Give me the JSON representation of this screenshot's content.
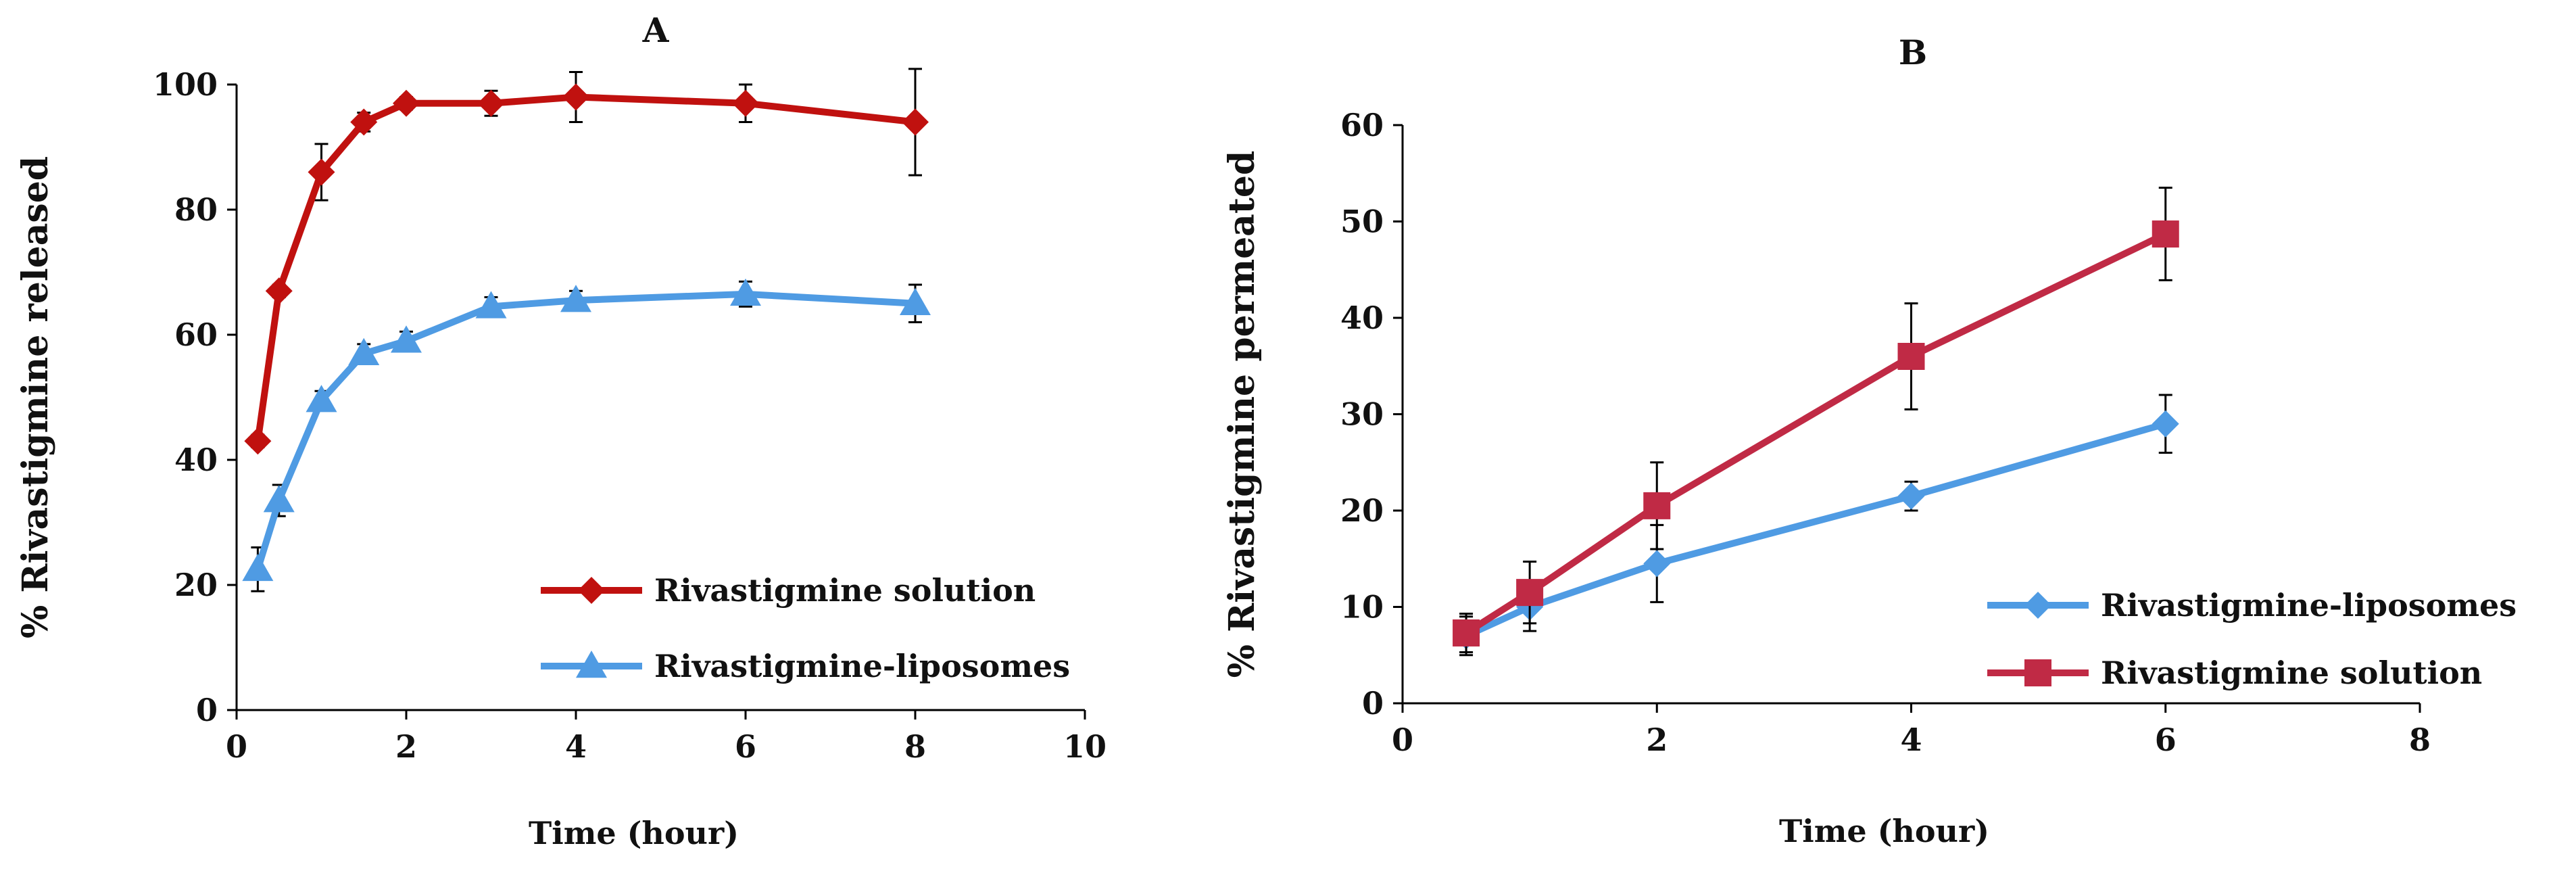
{
  "chart_data": [
    {
      "type": "line",
      "panel_label": "A",
      "title": "",
      "xlabel": "Time (hour)",
      "ylabel": "% Rivastigmine released",
      "xlim": [
        0,
        10
      ],
      "ylim": [
        0,
        100
      ],
      "xticks": [
        0,
        2,
        4,
        6,
        8,
        10
      ],
      "yticks": [
        0,
        20,
        40,
        60,
        80,
        100
      ],
      "xtick_labels": [
        "0",
        "2",
        "4",
        "6",
        "8",
        "10"
      ],
      "ytick_labels": [
        "0",
        "20",
        "40",
        "60",
        "80",
        "100"
      ],
      "grid": false,
      "legend_position": "bottom-right",
      "series": [
        {
          "name": "Rivastigmine solution",
          "color": "#c0110f",
          "marker": "diamond",
          "x": [
            0.25,
            0.5,
            1,
            1.5,
            2,
            3,
            4,
            6,
            8
          ],
          "y": [
            43,
            67,
            86,
            94,
            97,
            97,
            98,
            97,
            94
          ],
          "err": [
            1,
            1,
            4.5,
            1.5,
            1,
            2,
            4,
            3,
            8.5
          ]
        },
        {
          "name": "Rivastigmine-liposomes",
          "color": "#4f9be3",
          "marker": "triangle",
          "x": [
            0.25,
            0.5,
            1,
            1.5,
            2,
            3,
            4,
            6,
            8
          ],
          "y": [
            22.5,
            33.5,
            49.5,
            57,
            59,
            64.5,
            65.5,
            66.5,
            65
          ],
          "err": [
            3.5,
            2.5,
            1.5,
            1.5,
            1.5,
            1.5,
            1.5,
            2,
            3
          ]
        }
      ]
    },
    {
      "type": "line",
      "panel_label": "B",
      "title": "",
      "xlabel": "Time (hour)",
      "ylabel": "% Rivastigmine permeated",
      "xlim": [
        0,
        8
      ],
      "ylim": [
        0,
        60
      ],
      "xticks": [
        0,
        2,
        4,
        6,
        8
      ],
      "yticks": [
        0,
        10,
        20,
        30,
        40,
        50,
        60
      ],
      "xtick_labels": [
        "0",
        "2",
        "4",
        "6",
        "8"
      ],
      "ytick_labels": [
        "0",
        "10",
        "20",
        "30",
        "40",
        "50",
        "60"
      ],
      "grid": false,
      "legend_position": "bottom-right",
      "series": [
        {
          "name": "Rivastigmine-liposomes",
          "color": "#4f9be3",
          "marker": "diamond",
          "x": [
            0.5,
            1,
            2,
            4,
            6
          ],
          "y": [
            7,
            10,
            14.5,
            21.5,
            29
          ],
          "err": [
            2,
            2.5,
            4,
            1.5,
            3
          ]
        },
        {
          "name": "Rivastigmine solution",
          "color": "#c02a45",
          "marker": "square",
          "x": [
            0.5,
            1,
            2,
            4,
            6
          ],
          "y": [
            7.3,
            11.5,
            20.5,
            36,
            48.7
          ],
          "err": [
            2,
            3.2,
            4.5,
            5.5,
            4.8
          ]
        }
      ]
    }
  ]
}
